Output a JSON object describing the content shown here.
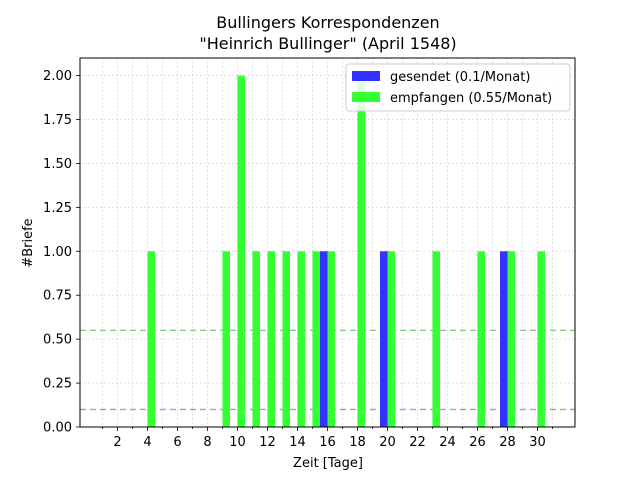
{
  "chart_data": {
    "type": "bar",
    "title": "Bullingers Korrespondenzen",
    "subtitle": "\"Heinrich Bullinger\" (April 1548)",
    "xlabel": "Zeit [Tage]",
    "ylabel": "#Briefe",
    "xlim": [
      -0.5,
      32.5
    ],
    "ylim": [
      0,
      2.1
    ],
    "x_ticks": [
      2,
      4,
      6,
      8,
      10,
      12,
      14,
      16,
      18,
      20,
      22,
      24,
      26,
      28,
      30
    ],
    "x_minor_ticks": [
      1,
      3,
      5,
      7,
      9,
      11,
      13,
      15,
      17,
      19,
      21,
      23,
      25,
      27,
      29,
      31
    ],
    "y_ticks": [
      "0.00",
      "0.25",
      "0.50",
      "0.75",
      "1.00",
      "1.25",
      "1.50",
      "1.75",
      "2.00"
    ],
    "grid": true,
    "legend_position": "top-right",
    "series": [
      {
        "name": "gesendet (0.1/Monat)",
        "color": "#3333ff",
        "offset": -0.25,
        "points": [
          [
            16,
            1
          ],
          [
            20,
            1
          ],
          [
            28,
            1
          ]
        ]
      },
      {
        "name": "empfangen (0.55/Monat)",
        "color": "#33ff33",
        "offset": 0.25,
        "points": [
          [
            4,
            1
          ],
          [
            9,
            1
          ],
          [
            10,
            2
          ],
          [
            11,
            1
          ],
          [
            12,
            1
          ],
          [
            13,
            1
          ],
          [
            14,
            1
          ],
          [
            15,
            1
          ],
          [
            16,
            1
          ],
          [
            18,
            2
          ],
          [
            20,
            1
          ],
          [
            23,
            1
          ],
          [
            26,
            1
          ],
          [
            28,
            1
          ],
          [
            30,
            1
          ]
        ]
      }
    ],
    "reference_lines": [
      {
        "series": "gesendet (0.1/Monat)",
        "value": 0.1,
        "color": "#9999ee"
      },
      {
        "series": "empfangen (0.55/Monat)",
        "value": 0.55,
        "color": "#88cc88"
      }
    ]
  }
}
